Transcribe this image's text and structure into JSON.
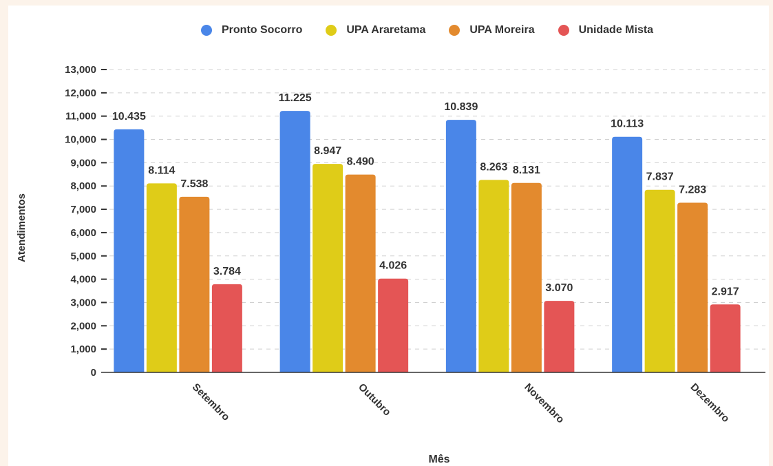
{
  "chart_data": {
    "type": "bar",
    "title": "",
    "xlabel": "Mês",
    "ylabel": "Atendimentos",
    "categories": [
      "Setembro",
      "Outubro",
      "Novembro",
      "Dezembro"
    ],
    "ylim": [
      0,
      13000
    ],
    "yticks": [
      0,
      1000,
      2000,
      3000,
      4000,
      5000,
      6000,
      7000,
      8000,
      9000,
      10000,
      11000,
      12000,
      13000
    ],
    "ytick_labels": [
      "0",
      "1,000",
      "2,000",
      "3,000",
      "4,000",
      "5,000",
      "6,000",
      "7,000",
      "8,000",
      "9,000",
      "10,000",
      "11,000",
      "12,000",
      "13,000"
    ],
    "grid": true,
    "legend_position": "top",
    "series": [
      {
        "name": "Pronto Socorro",
        "color": "#4a86e8",
        "values": [
          10435,
          11225,
          10839,
          10113
        ],
        "labels": [
          "10.435",
          "11.225",
          "10.839",
          "10.113"
        ]
      },
      {
        "name": "UPA Araretama",
        "color": "#dfcc18",
        "values": [
          8114,
          8947,
          8263,
          7837
        ],
        "labels": [
          "8.114",
          "8.947",
          "8.263",
          "7.837"
        ]
      },
      {
        "name": "UPA Moreira",
        "color": "#e38a2e",
        "values": [
          7538,
          8490,
          8131,
          7283
        ],
        "labels": [
          "7.538",
          "8.490",
          "8.131",
          "7.283"
        ]
      },
      {
        "name": "Unidade Mista",
        "color": "#e45555",
        "values": [
          3784,
          4026,
          3070,
          2917
        ],
        "labels": [
          "3.784",
          "4.026",
          "3.070",
          "2.917"
        ]
      }
    ]
  }
}
